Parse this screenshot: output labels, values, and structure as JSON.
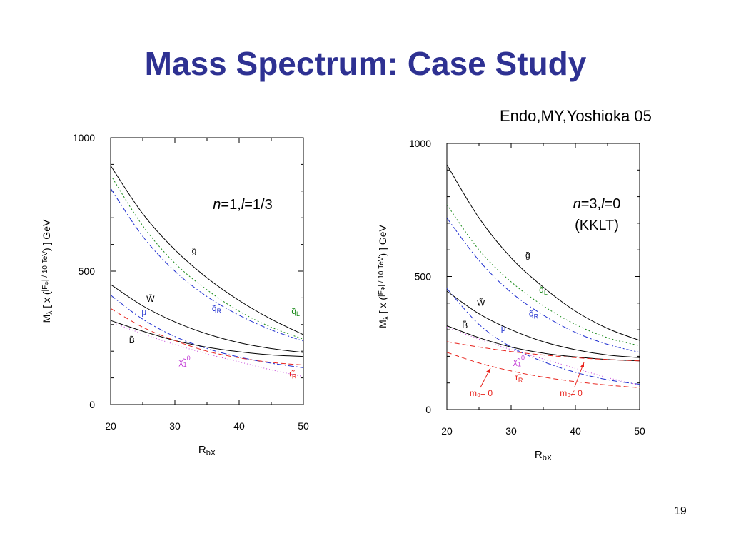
{
  "slide": {
    "title": "Mass Spectrum: Case Study",
    "reference": "Endo,MY,Yoshioka 05",
    "page_number": "19"
  },
  "chart_data": [
    {
      "type": "line",
      "panel_label": [
        "n",
        "=1,",
        "l",
        "=1/3"
      ],
      "xlabel": [
        "R",
        "bX"
      ],
      "ylabel": [
        "M",
        "λ",
        " [ x (",
        "|F",
        "Φ",
        "|",
        " / ",
        "10 TeV",
        ") ] GeV"
      ],
      "xlim": [
        20,
        50
      ],
      "ylim": [
        0,
        1000
      ],
      "x_ticks": [
        20,
        30,
        40,
        50
      ],
      "y_ticks": [
        0,
        500,
        1000
      ],
      "grid": false,
      "series": [
        {
          "name": "g̃",
          "color": "#000000",
          "dash": "",
          "x": [
            20,
            25,
            30,
            35,
            40,
            45,
            50
          ],
          "y": [
            895,
            715,
            580,
            475,
            390,
            320,
            262
          ]
        },
        {
          "name": "q̃L",
          "color": "#1a8a1a",
          "dash": "2,3",
          "x": [
            20,
            25,
            30,
            35,
            40,
            45,
            50
          ],
          "y": [
            860,
            670,
            530,
            430,
            350,
            290,
            245
          ]
        },
        {
          "name": "q̃R",
          "color": "#1f2fd0",
          "dash": "8,3,2,3",
          "x": [
            20,
            25,
            30,
            35,
            40,
            45,
            50
          ],
          "y": [
            810,
            630,
            500,
            405,
            335,
            280,
            238
          ]
        },
        {
          "name": "W̃",
          "color": "#000000",
          "dash": "",
          "x": [
            20,
            25,
            30,
            35,
            40,
            45,
            50
          ],
          "y": [
            450,
            370,
            310,
            265,
            232,
            210,
            195
          ]
        },
        {
          "name": "μ",
          "color": "#1f2fd0",
          "dash": "8,3,2,3",
          "x": [
            20,
            25,
            30,
            35,
            40,
            45,
            50
          ],
          "y": [
            410,
            320,
            255,
            210,
            178,
            155,
            138
          ]
        },
        {
          "name": "B̃",
          "color": "#000000",
          "dash": "",
          "x": [
            20,
            25,
            30,
            35,
            40,
            45,
            50
          ],
          "y": [
            315,
            275,
            240,
            215,
            198,
            186,
            180
          ]
        },
        {
          "name": "τ̃R",
          "color": "#e8231c",
          "dash": "7,4",
          "x": [
            20,
            25,
            30,
            35,
            40,
            45,
            50
          ],
          "y": [
            360,
            290,
            240,
            200,
            175,
            158,
            148
          ]
        },
        {
          "name": "χ̃1⁰",
          "color": "#c23bd6",
          "dash": "1,3",
          "x": [
            20,
            25,
            30,
            35,
            40,
            45,
            50
          ],
          "y": [
            310,
            265,
            225,
            190,
            160,
            130,
            105
          ]
        }
      ]
    },
    {
      "type": "line",
      "panel_label": [
        "n",
        "=3,",
        "l",
        "=0"
      ],
      "panel_sublabel": "(KKLT)",
      "xlabel": [
        "R",
        "bX"
      ],
      "ylabel": [
        "M",
        "λ",
        " [ x (",
        "|F",
        "Φ",
        "|",
        " / ",
        "10 TeV",
        ") ] GeV"
      ],
      "xlim": [
        20,
        50
      ],
      "ylim": [
        0,
        1000
      ],
      "x_ticks": [
        20,
        30,
        40,
        50
      ],
      "y_ticks": [
        0,
        500,
        1000
      ],
      "grid": false,
      "series": [
        {
          "name": "g̃",
          "color": "#000000",
          "dash": "",
          "x": [
            20,
            25,
            30,
            35,
            40,
            45,
            50
          ],
          "y": [
            920,
            720,
            570,
            460,
            370,
            305,
            260
          ]
        },
        {
          "name": "q̃L",
          "color": "#1a8a1a",
          "dash": "2,3",
          "x": [
            20,
            25,
            30,
            35,
            40,
            45,
            50
          ],
          "y": [
            770,
            600,
            480,
            390,
            320,
            270,
            240
          ]
        },
        {
          "name": "q̃R",
          "color": "#1f2fd0",
          "dash": "8,3,2,3",
          "x": [
            20,
            25,
            30,
            35,
            40,
            45,
            50
          ],
          "y": [
            720,
            560,
            440,
            355,
            290,
            245,
            215
          ]
        },
        {
          "name": "W̃",
          "color": "#000000",
          "dash": "",
          "x": [
            20,
            25,
            30,
            35,
            40,
            45,
            50
          ],
          "y": [
            445,
            360,
            300,
            255,
            225,
            205,
            195
          ]
        },
        {
          "name": "μ",
          "color": "#1f2fd0",
          "dash": "8,3,2,3",
          "x": [
            20,
            25,
            30,
            35,
            40,
            45,
            50
          ],
          "y": [
            455,
            320,
            235,
            180,
            140,
            112,
            95
          ]
        },
        {
          "name": "B̃",
          "color": "#000000",
          "dash": "",
          "x": [
            20,
            25,
            30,
            35,
            40,
            45,
            50
          ],
          "y": [
            315,
            270,
            235,
            212,
            198,
            188,
            183
          ]
        },
        {
          "name": "χ̃1⁰",
          "color": "#c23bd6",
          "dash": "1,3",
          "x": [
            20,
            25,
            30,
            35,
            40,
            45,
            50
          ],
          "y": [
            310,
            265,
            225,
            190,
            155,
            120,
            92
          ]
        },
        {
          "name": "τ̃R",
          "color": "#e8231c",
          "dash": "7,4",
          "x": [
            20,
            25,
            30,
            35,
            40,
            45,
            50
          ],
          "y": [
            255,
            235,
            218,
            205,
            195,
            188,
            183
          ]
        },
        {
          "name": "",
          "color": "#e8231c",
          "dash": "7,4",
          "x": [
            20,
            25,
            30,
            35,
            40,
            45,
            50
          ],
          "y": [
            215,
            175,
            145,
            122,
            105,
            92,
            82
          ]
        }
      ],
      "annotations": [
        {
          "text": "m₀= 0",
          "color": "#e8231c"
        },
        {
          "text": "m₀≠ 0",
          "color": "#e8231c"
        }
      ]
    }
  ]
}
